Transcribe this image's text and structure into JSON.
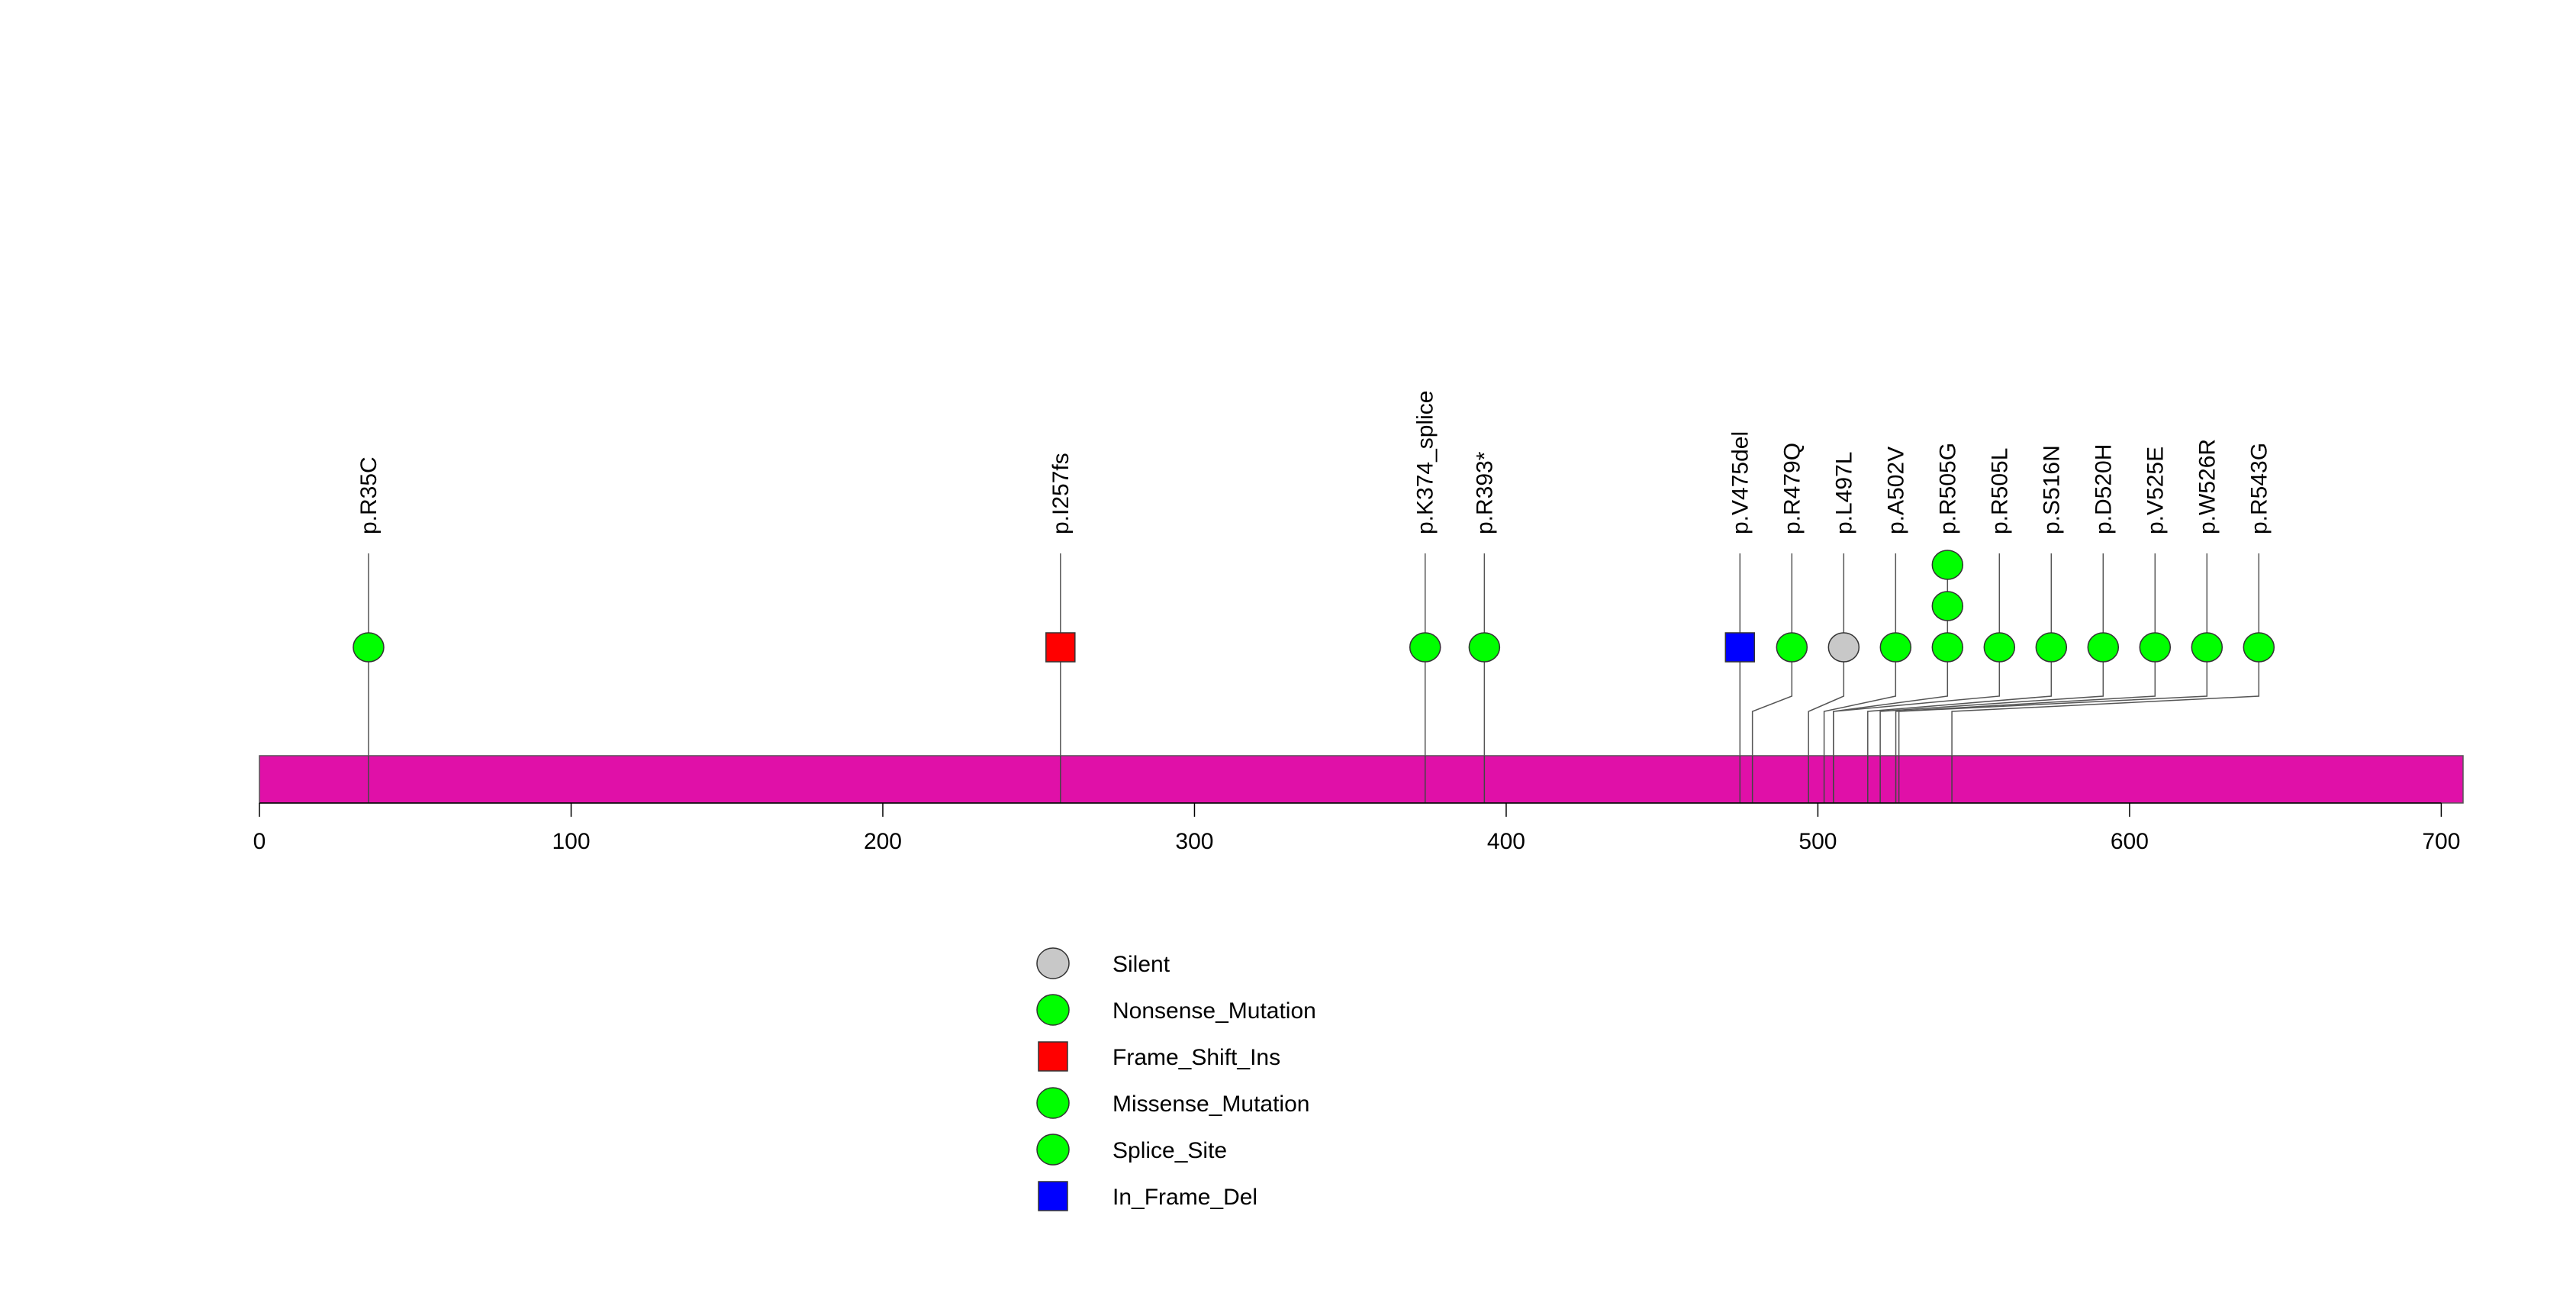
{
  "chart_data": {
    "type": "lollipop",
    "title": "",
    "xlabel": "",
    "ylabel": "",
    "xlim": [
      0,
      707
    ],
    "x_ticks": [
      0,
      100,
      200,
      300,
      400,
      500,
      600,
      700
    ],
    "protein_bar": {
      "start": 0,
      "end": 707,
      "color": "#E010A8"
    },
    "mutations": [
      {
        "label": "p.R35C",
        "position": 35,
        "type": "Nonsense_Mutation",
        "count": 1
      },
      {
        "label": "p.I257fs",
        "position": 257,
        "type": "Frame_Shift_Ins",
        "count": 1
      },
      {
        "label": "p.K374_splice",
        "position": 374,
        "type": "Splice_Site",
        "count": 1
      },
      {
        "label": "p.R393*",
        "position": 393,
        "type": "Nonsense_Mutation",
        "count": 1
      },
      {
        "label": "p.V475del",
        "position": 475,
        "type": "In_Frame_Del",
        "count": 1
      },
      {
        "label": "p.R479Q",
        "position": 479,
        "type": "Missense_Mutation",
        "count": 1
      },
      {
        "label": "p.L497L",
        "position": 497,
        "type": "Silent",
        "count": 1
      },
      {
        "label": "p.A502V",
        "position": 502,
        "type": "Missense_Mutation",
        "count": 1
      },
      {
        "label": "p.R505G",
        "position": 505,
        "type": "Missense_Mutation",
        "count": 3
      },
      {
        "label": "p.R505L",
        "position": 505,
        "type": "Missense_Mutation",
        "count": 1
      },
      {
        "label": "p.S516N",
        "position": 516,
        "type": "Missense_Mutation",
        "count": 1
      },
      {
        "label": "p.D520H",
        "position": 520,
        "type": "Missense_Mutation",
        "count": 1
      },
      {
        "label": "p.V525E",
        "position": 525,
        "type": "Missense_Mutation",
        "count": 1
      },
      {
        "label": "p.W526R",
        "position": 526,
        "type": "Missense_Mutation",
        "count": 1
      },
      {
        "label": "p.R543G",
        "position": 543,
        "type": "Missense_Mutation",
        "count": 1
      }
    ],
    "legend": [
      {
        "label": "Silent",
        "shape": "circle",
        "color": "#C8C8C8"
      },
      {
        "label": "Nonsense_Mutation",
        "shape": "circle",
        "color": "#00FF00"
      },
      {
        "label": "Frame_Shift_Ins",
        "shape": "square",
        "color": "#FF0000"
      },
      {
        "label": "Missense_Mutation",
        "shape": "circle",
        "color": "#00FF00"
      },
      {
        "label": "Splice_Site",
        "shape": "circle",
        "color": "#00FF00"
      },
      {
        "label": "In_Frame_Del",
        "shape": "square",
        "color": "#0000FF"
      }
    ]
  }
}
